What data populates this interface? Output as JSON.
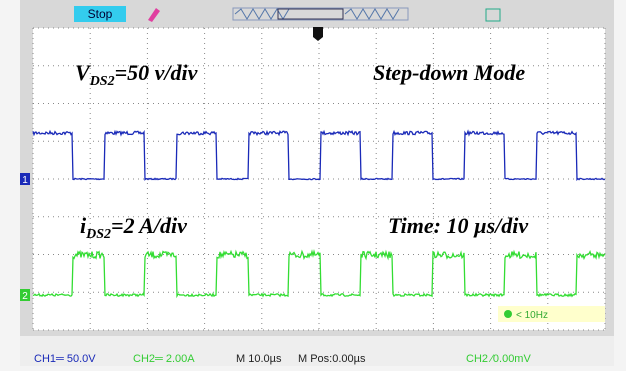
{
  "top_bar": {
    "status": "Stop"
  },
  "annotations": {
    "voltage_scale": {
      "symbol": "V",
      "subscript": "DS2",
      "rest": "=50 v/div"
    },
    "mode": "Step-down Mode",
    "current_scale": {
      "symbol": "i",
      "subscript": "DS2",
      "rest": "=2 A/div"
    },
    "time_scale": "Time: 10 µs/div"
  },
  "channel_markers": [
    "1",
    "2"
  ],
  "frequency_readout": "< 10Hz",
  "status_bar": [
    "CH1═ 50.0V",
    "CH2═ 2.00A",
    "M 10.0µs",
    "M Pos:0.00µs",
    "CH2 ⁄0.00mV"
  ]
}
